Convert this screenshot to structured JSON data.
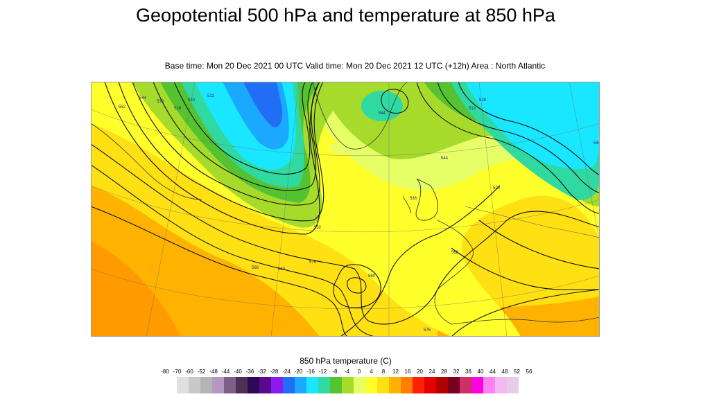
{
  "title": "Geopotential 500 hPa and temperature at 850 hPa",
  "subtitle": "Base time: Mon 20 Dec 2021 00 UTC Valid time: Mon 20 Dec 2021 12 UTC (+12h) Area : North Atlantic",
  "map": {
    "contour_labels": [
      "512",
      "520",
      "528",
      "536",
      "544",
      "552",
      "560",
      "568",
      "576",
      "560",
      "552",
      "544",
      "528",
      "520",
      "512",
      "536",
      "544",
      "568",
      "576",
      "544"
    ]
  },
  "legend": {
    "title": "850 hPa temperature (C)",
    "ticks": [
      "-80",
      "-70",
      "-60",
      "-52",
      "-48",
      "-44",
      "-40",
      "-36",
      "-32",
      "-28",
      "-24",
      "-20",
      "-16",
      "-12",
      "-8",
      "-4",
      "0",
      "4",
      "8",
      "12",
      "16",
      "20",
      "24",
      "28",
      "32",
      "36",
      "40",
      "44",
      "48",
      "52",
      "56"
    ],
    "colors": [
      "#e0e0e0",
      "#c8c8c8",
      "#b4b4b4",
      "#b399c0",
      "#7e5f86",
      "#4f2f56",
      "#2e0a54",
      "#5a0a8e",
      "#8a1af0",
      "#1f6ef5",
      "#1ba8ff",
      "#19e6ff",
      "#2fd9a0",
      "#55c230",
      "#a6db2c",
      "#e6ff66",
      "#ffff2c",
      "#ffe012",
      "#ffb300",
      "#ff7e00",
      "#ff2200",
      "#e60000",
      "#b30000",
      "#7a0020",
      "#cc3066",
      "#ff00e0",
      "#ff82f2",
      "#f5b8f0",
      "#e6cce6"
    ]
  }
}
